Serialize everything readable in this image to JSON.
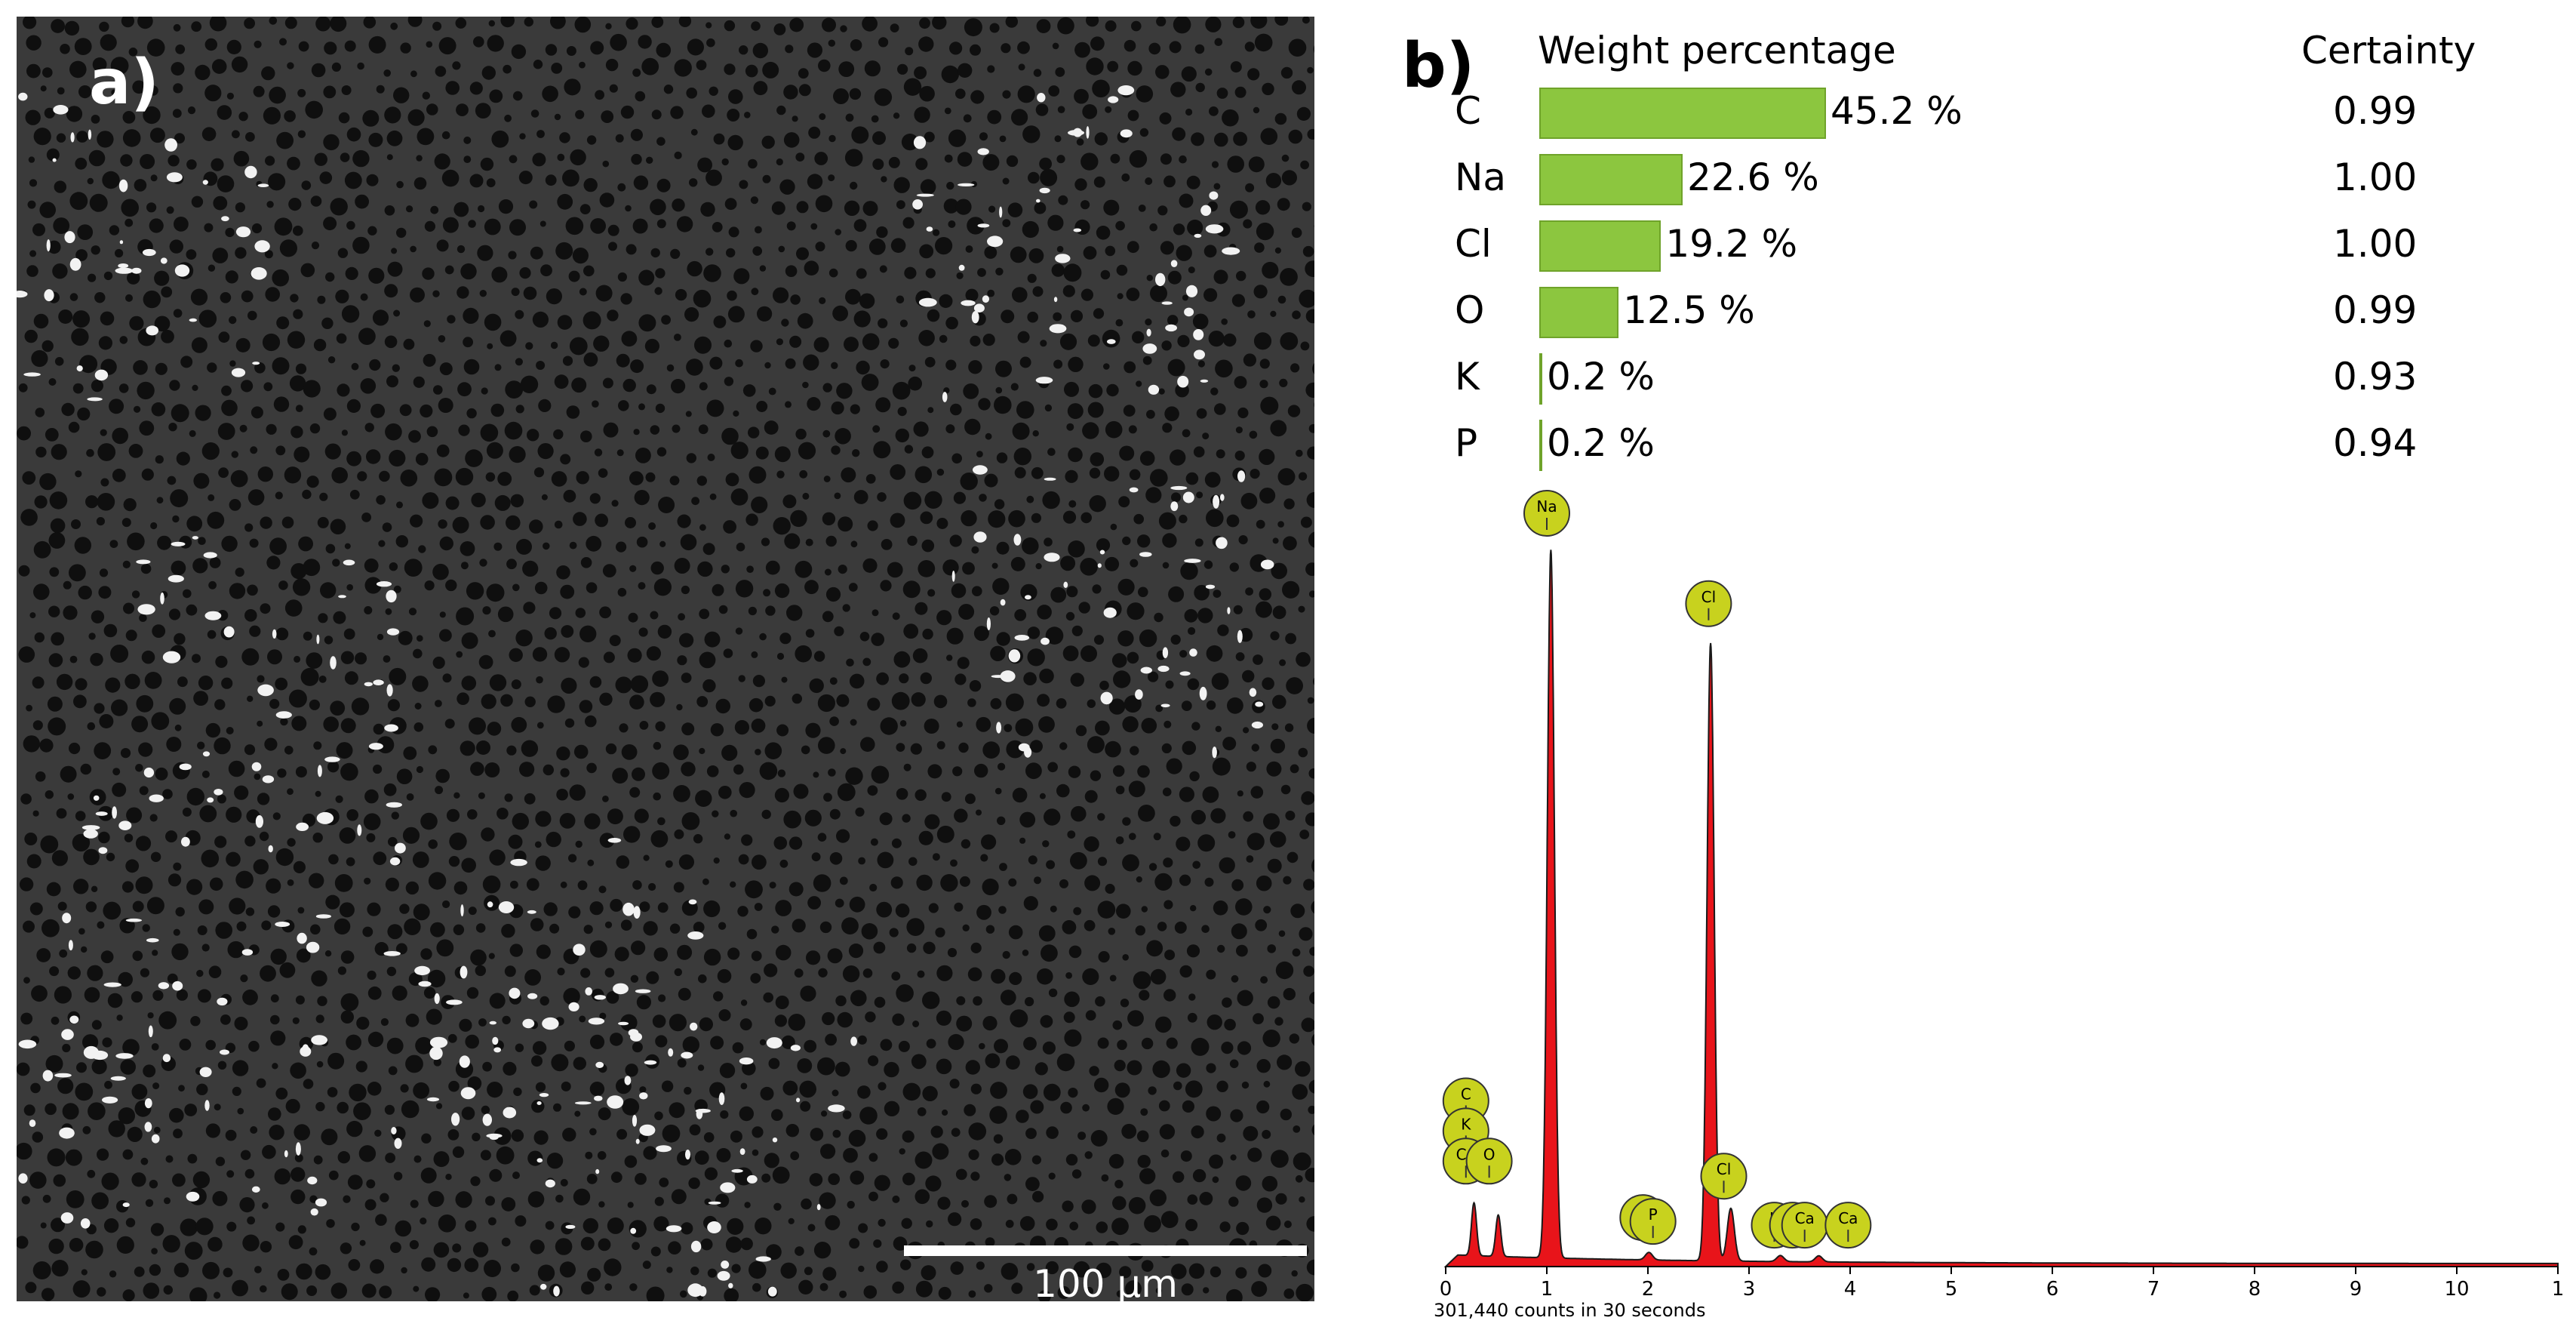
{
  "panel_a": {
    "label": "a)",
    "scale_bar": "100 µm"
  },
  "panel_b": {
    "label": "b)"
  },
  "chart_data": [
    {
      "type": "bar",
      "title": "Weight percentage",
      "certainty_header": "Certainty",
      "categories": [
        "C",
        "Na",
        "Cl",
        "O",
        "K",
        "P"
      ],
      "values": [
        45.2,
        22.6,
        19.2,
        12.5,
        0.2,
        0.2
      ],
      "value_labels": [
        "45.2 %",
        "22.6 %",
        "19.2 %",
        "12.5 %",
        "0.2 %",
        "0.2 %"
      ],
      "certainty": [
        "0.99",
        "1.00",
        "1.00",
        "0.99",
        "0.93",
        "0.94"
      ],
      "bar_color": "#8cc63f"
    },
    {
      "type": "line",
      "fill_color": "#e8141a",
      "x_ticks": [
        "0",
        "1",
        "2",
        "3",
        "4",
        "5",
        "6",
        "7",
        "8",
        "9",
        "10",
        "1"
      ],
      "xlim": [
        0,
        11
      ],
      "ylim": [
        0,
        1.0
      ],
      "peaks": [
        {
          "element": "C",
          "x": 0.28,
          "y": 0.07
        },
        {
          "element": "O",
          "x": 0.52,
          "y": 0.055
        },
        {
          "element": "Na",
          "x": 1.04,
          "y": 0.94
        },
        {
          "element": "P",
          "x": 2.01,
          "y": 0.01
        },
        {
          "element": "Cl",
          "x": 2.62,
          "y": 0.82
        },
        {
          "element": "Cl",
          "x": 2.82,
          "y": 0.07
        },
        {
          "element": "K",
          "x": 3.31,
          "y": 0.008
        },
        {
          "element": "Ca",
          "x": 3.69,
          "y": 0.008
        }
      ],
      "badges": [
        {
          "label": "Na",
          "x": 1.0,
          "y": 1.0
        },
        {
          "label": "Cl",
          "x": 2.6,
          "y": 0.88
        },
        {
          "label": "C",
          "x": 0.2,
          "y": 0.22
        },
        {
          "label": "K",
          "x": 0.2,
          "y": 0.18
        },
        {
          "label": "Ca",
          "x": 0.2,
          "y": 0.14
        },
        {
          "label": "O",
          "x": 0.43,
          "y": 0.14
        },
        {
          "label": "P",
          "x": 1.95,
          "y": 0.065
        },
        {
          "label": "P",
          "x": 2.05,
          "y": 0.06
        },
        {
          "label": "Cl",
          "x": 2.75,
          "y": 0.12
        },
        {
          "label": "K",
          "x": 3.25,
          "y": 0.055
        },
        {
          "label": "Ca",
          "x": 3.43,
          "y": 0.055
        },
        {
          "label": "Ca",
          "x": 3.55,
          "y": 0.055
        },
        {
          "label": "Ca",
          "x": 3.98,
          "y": 0.055
        }
      ],
      "counts_text": "301,440 counts in 30 seconds"
    }
  ]
}
